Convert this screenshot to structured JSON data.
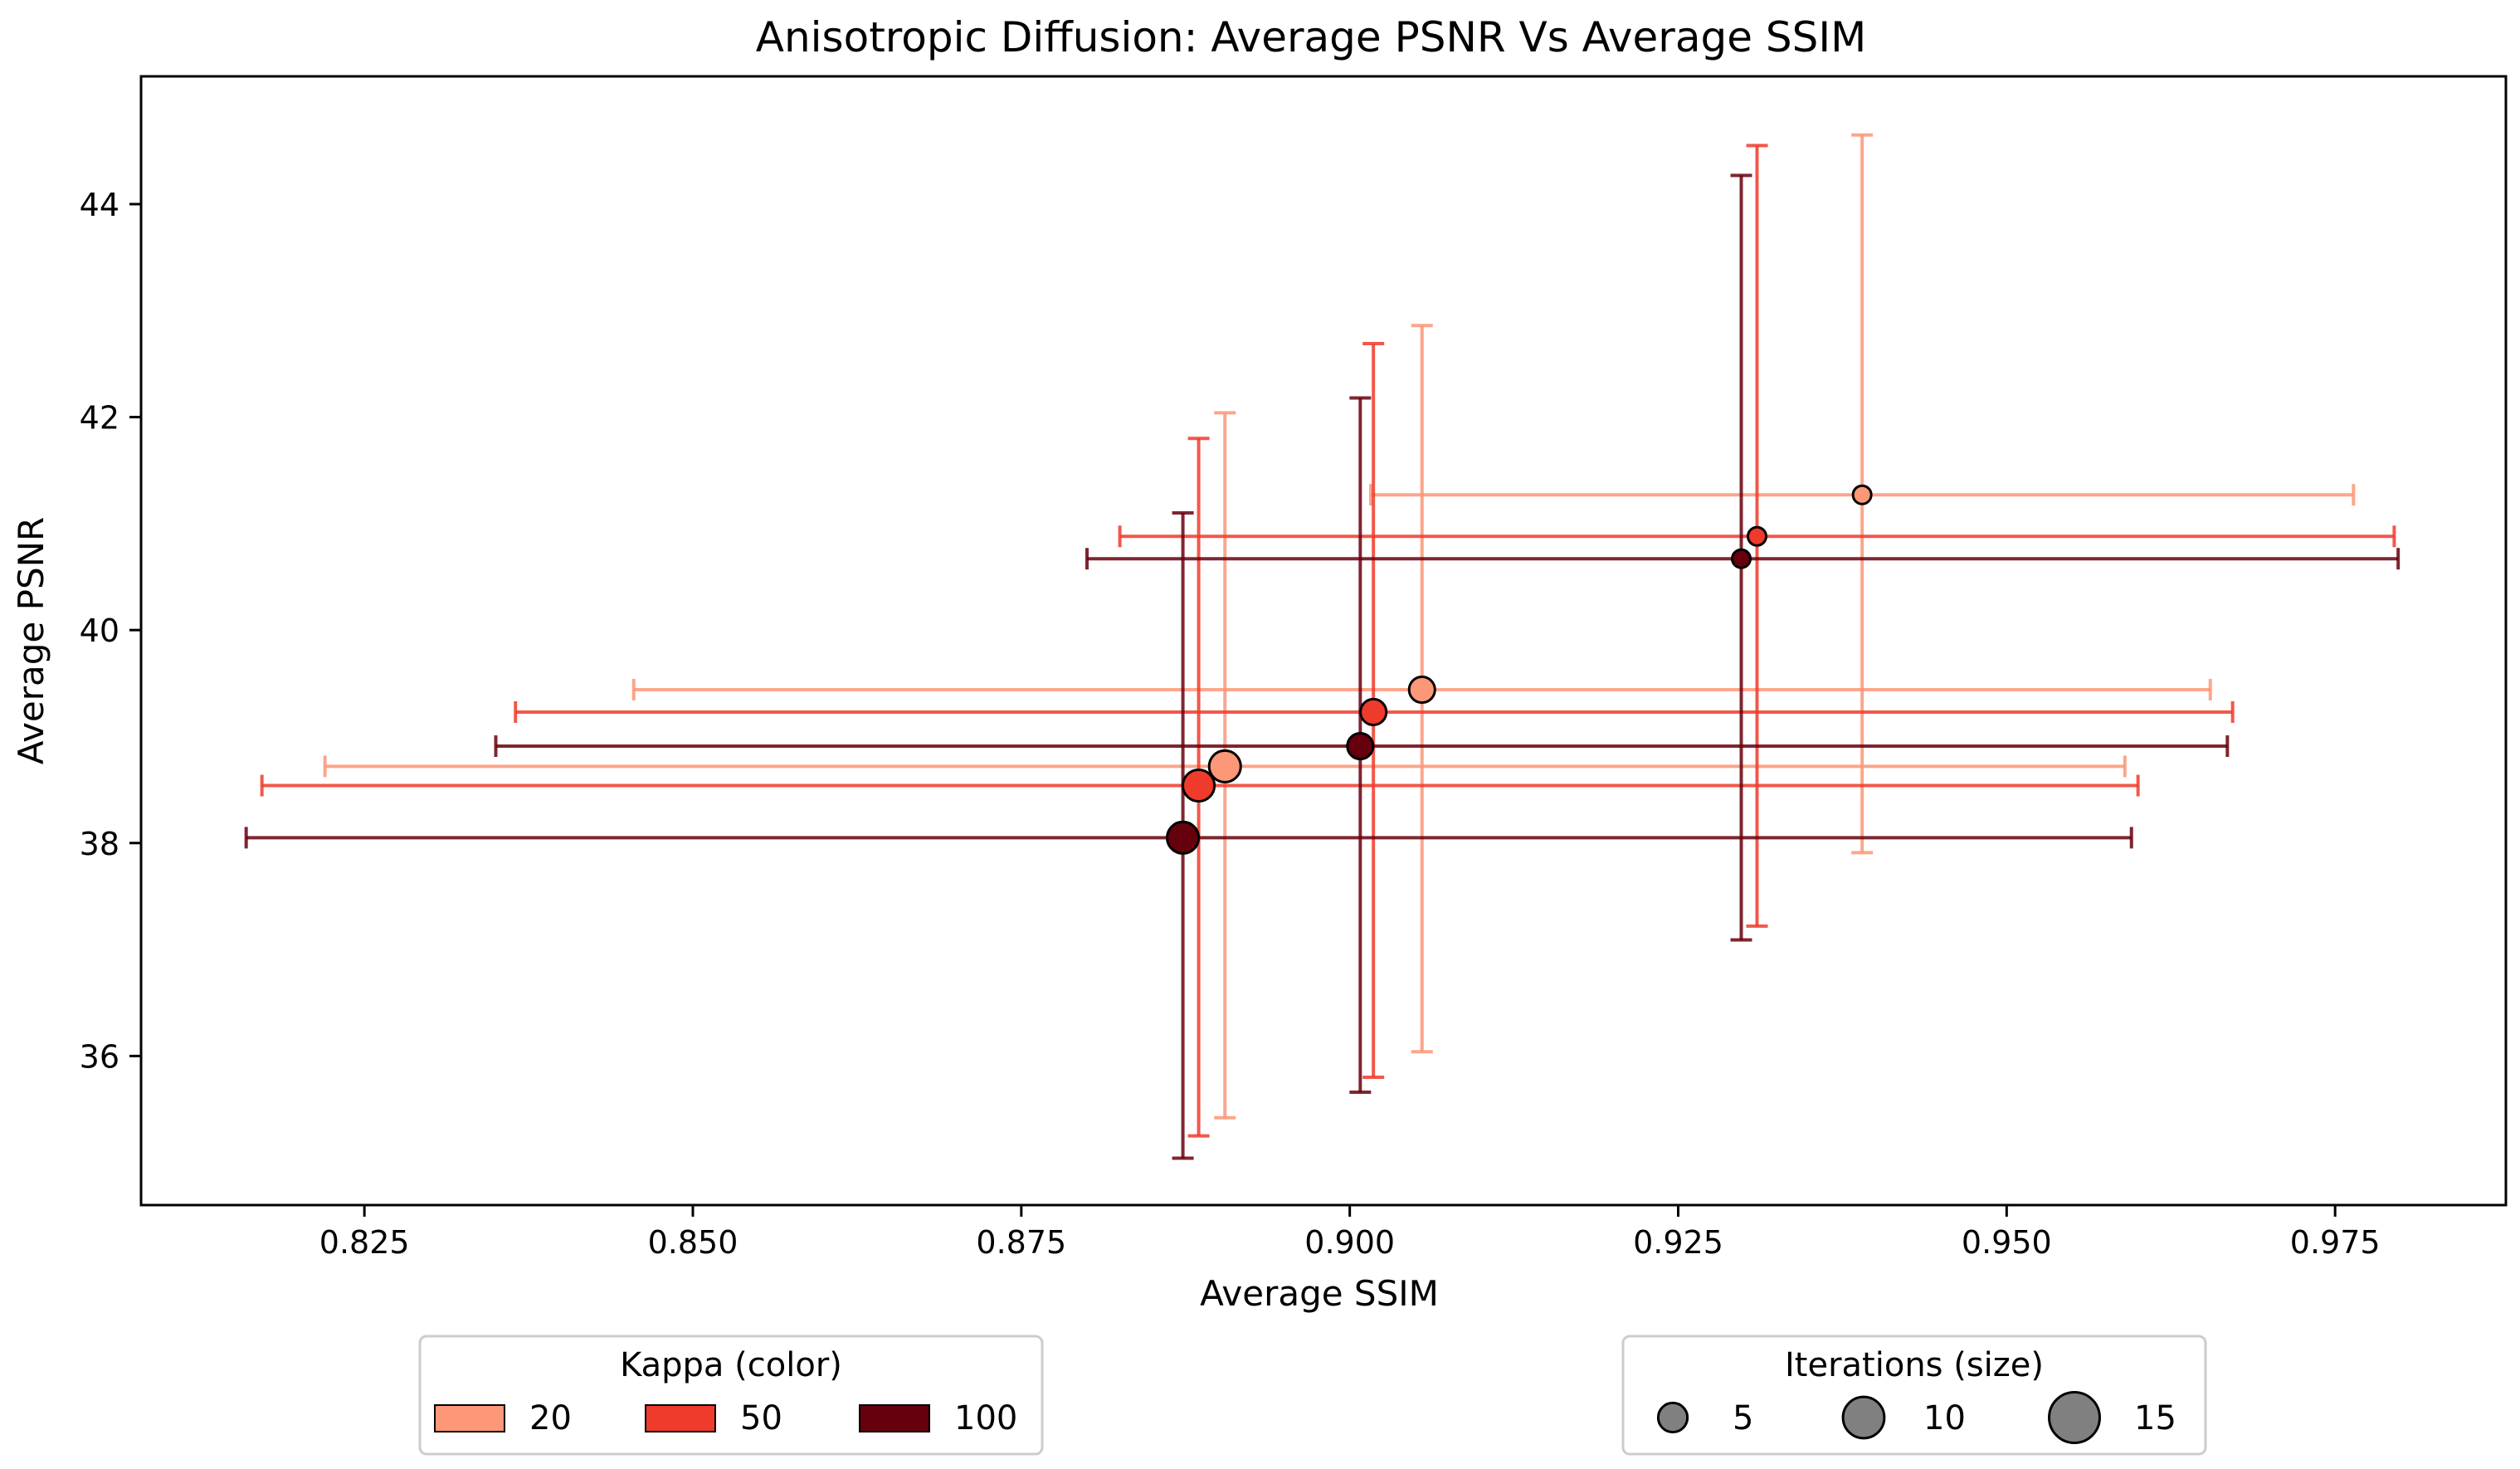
{
  "chart_data": {
    "type": "scatter",
    "title": "Anisotropic Diffusion: Average PSNR Vs Average SSIM",
    "xlabel": "Average SSIM",
    "ylabel": "Average PSNR",
    "xlim": [
      0.808,
      0.988
    ],
    "ylim": [
      34.6,
      45.2
    ],
    "xticks": [
      0.825,
      0.85,
      0.875,
      0.9,
      0.925,
      0.95,
      0.975
    ],
    "xtick_labels": [
      "0.825",
      "0.850",
      "0.875",
      "0.900",
      "0.925",
      "0.950",
      "0.975"
    ],
    "yticks": [
      36,
      38,
      40,
      42,
      44
    ],
    "ytick_labels": [
      "36",
      "38",
      "40",
      "42",
      "44"
    ],
    "grid": false,
    "kappa_colors": {
      "20": "#fc9777",
      "50": "#ef3b2c",
      "100": "#67000d"
    },
    "series": [
      {
        "kappa": 20,
        "iterations": 5,
        "ssim": 0.939,
        "psnr": 41.27,
        "ssim_err": [
          0.9016,
          0.9764
        ],
        "psnr_err": [
          37.91,
          44.65
        ]
      },
      {
        "kappa": 20,
        "iterations": 10,
        "ssim": 0.9055,
        "psnr": 39.44,
        "ssim_err": [
          0.8455,
          0.9655
        ],
        "psnr_err": [
          36.04,
          42.86
        ]
      },
      {
        "kappa": 20,
        "iterations": 15,
        "ssim": 0.8905,
        "psnr": 38.72,
        "ssim_err": [
          0.822,
          0.959
        ],
        "psnr_err": [
          35.42,
          42.04
        ]
      },
      {
        "kappa": 50,
        "iterations": 5,
        "ssim": 0.931,
        "psnr": 40.88,
        "ssim_err": [
          0.8825,
          0.9795
        ],
        "psnr_err": [
          37.22,
          44.55
        ]
      },
      {
        "kappa": 50,
        "iterations": 10,
        "ssim": 0.9018,
        "psnr": 39.23,
        "ssim_err": [
          0.8365,
          0.9672
        ],
        "psnr_err": [
          35.8,
          42.69
        ]
      },
      {
        "kappa": 50,
        "iterations": 15,
        "ssim": 0.8885,
        "psnr": 38.54,
        "ssim_err": [
          0.8172,
          0.96
        ],
        "psnr_err": [
          35.25,
          41.8
        ]
      },
      {
        "kappa": 100,
        "iterations": 5,
        "ssim": 0.9298,
        "psnr": 40.67,
        "ssim_err": [
          0.88,
          0.9798
        ],
        "psnr_err": [
          37.09,
          44.27
        ]
      },
      {
        "kappa": 100,
        "iterations": 10,
        "ssim": 0.9008,
        "psnr": 38.91,
        "ssim_err": [
          0.835,
          0.9668
        ],
        "psnr_err": [
          35.66,
          42.18
        ]
      },
      {
        "kappa": 100,
        "iterations": 15,
        "ssim": 0.8873,
        "psnr": 38.05,
        "ssim_err": [
          0.816,
          0.9595
        ],
        "psnr_err": [
          35.04,
          41.1
        ]
      }
    ],
    "legend_color": {
      "title": "Kappa (color)",
      "entries": [
        {
          "label": "20",
          "color": "#fc9777"
        },
        {
          "label": "50",
          "color": "#ef3b2c"
        },
        {
          "label": "100",
          "color": "#67000d"
        }
      ]
    },
    "legend_size": {
      "title": "Iterations (size)",
      "entries": [
        {
          "label": "5",
          "iterations": 5
        },
        {
          "label": "10",
          "iterations": 10
        },
        {
          "label": "15",
          "iterations": 15
        }
      ]
    }
  }
}
